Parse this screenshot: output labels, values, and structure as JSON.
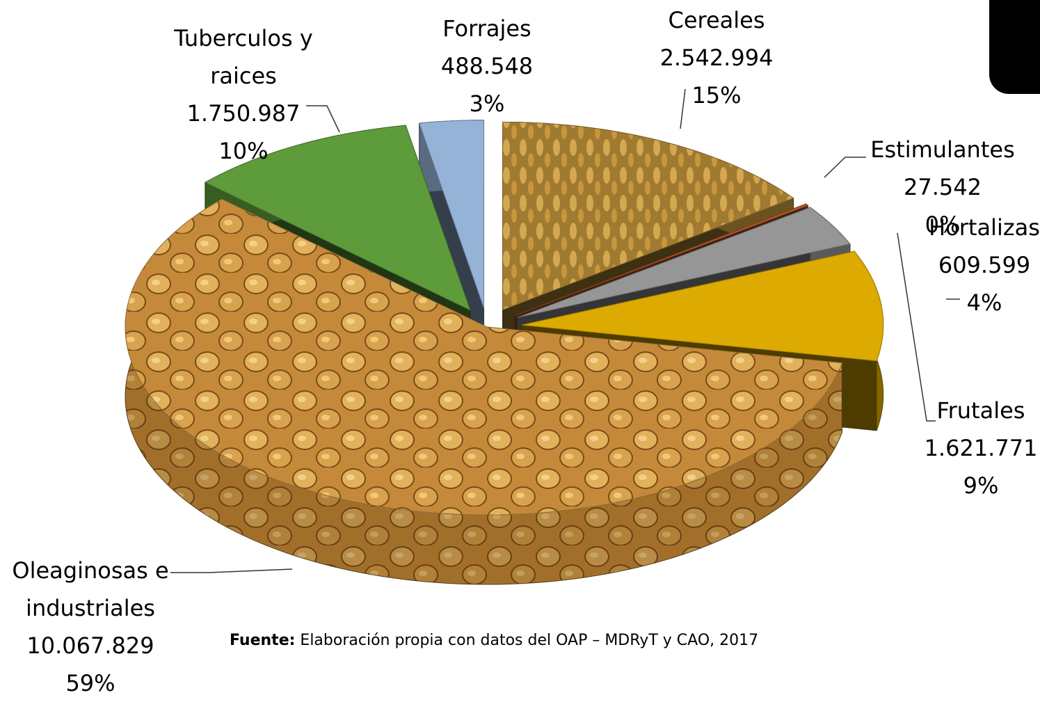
{
  "chart_data": {
    "type": "pie3d",
    "categories": [
      "Cereales",
      "Estimulantes",
      "Hortalizas",
      "Frutales",
      "Oleaginosas e industriales",
      "Tuberculos y raices",
      "Forrajes"
    ],
    "values": [
      2542994,
      27542,
      609599,
      1621771,
      10067829,
      1750987,
      488548
    ],
    "value_labels": [
      "2.542.994",
      "27.542",
      "609.599",
      "1.621.771",
      "10.067.829",
      "1.750.987",
      "488.548"
    ],
    "percent_labels": [
      "15%",
      "0%",
      "4%",
      "9%",
      "59%",
      "10%",
      "3%"
    ],
    "colors": [
      "#b08a36",
      "#b5582a",
      "#969696",
      "#dcaa00",
      "#d4a24e",
      "#5e9b3b",
      "#95b3d7"
    ],
    "source": {
      "label": "Fuente:",
      "text": "Elaboración propia con datos del OAP – MDRyT y CAO, 2017"
    }
  }
}
